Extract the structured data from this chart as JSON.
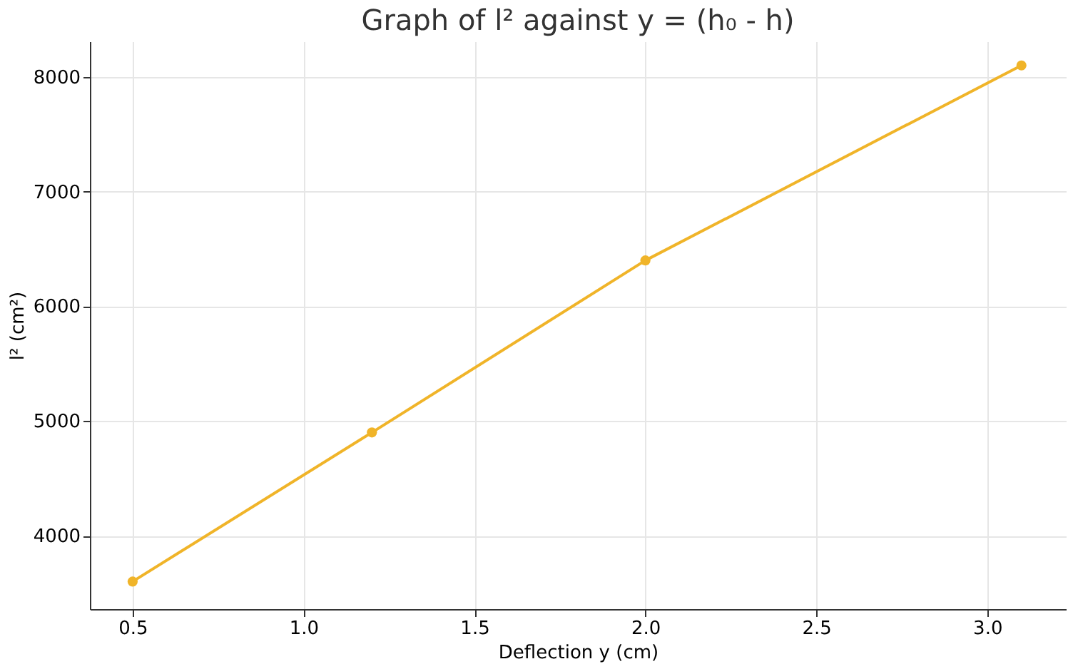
{
  "chart_data": {
    "type": "line",
    "title": "Graph of l² against y = (h₀ - h)",
    "xlabel": "Deflection y (cm)",
    "ylabel": "l² (cm²)",
    "x": [
      0.5,
      1.2,
      2.0,
      3.1
    ],
    "series": [
      {
        "color": "#f0b429",
        "values": [
          3600,
          4900,
          6400,
          8100
        ]
      }
    ],
    "xlim": [
      0.375,
      3.23
    ],
    "ylim": [
      3360,
      8310
    ],
    "xticks": [
      0.5,
      {
        "value": 1,
        "label": "1.0"
      },
      1.5,
      {
        "value": 2,
        "label": "2.0"
      },
      2.5,
      {
        "value": 3,
        "label": "3.0"
      }
    ],
    "yticks": [
      4000,
      5000,
      6000,
      7000,
      8000
    ],
    "grid": true,
    "marker": "circle",
    "line_style": "solid"
  }
}
